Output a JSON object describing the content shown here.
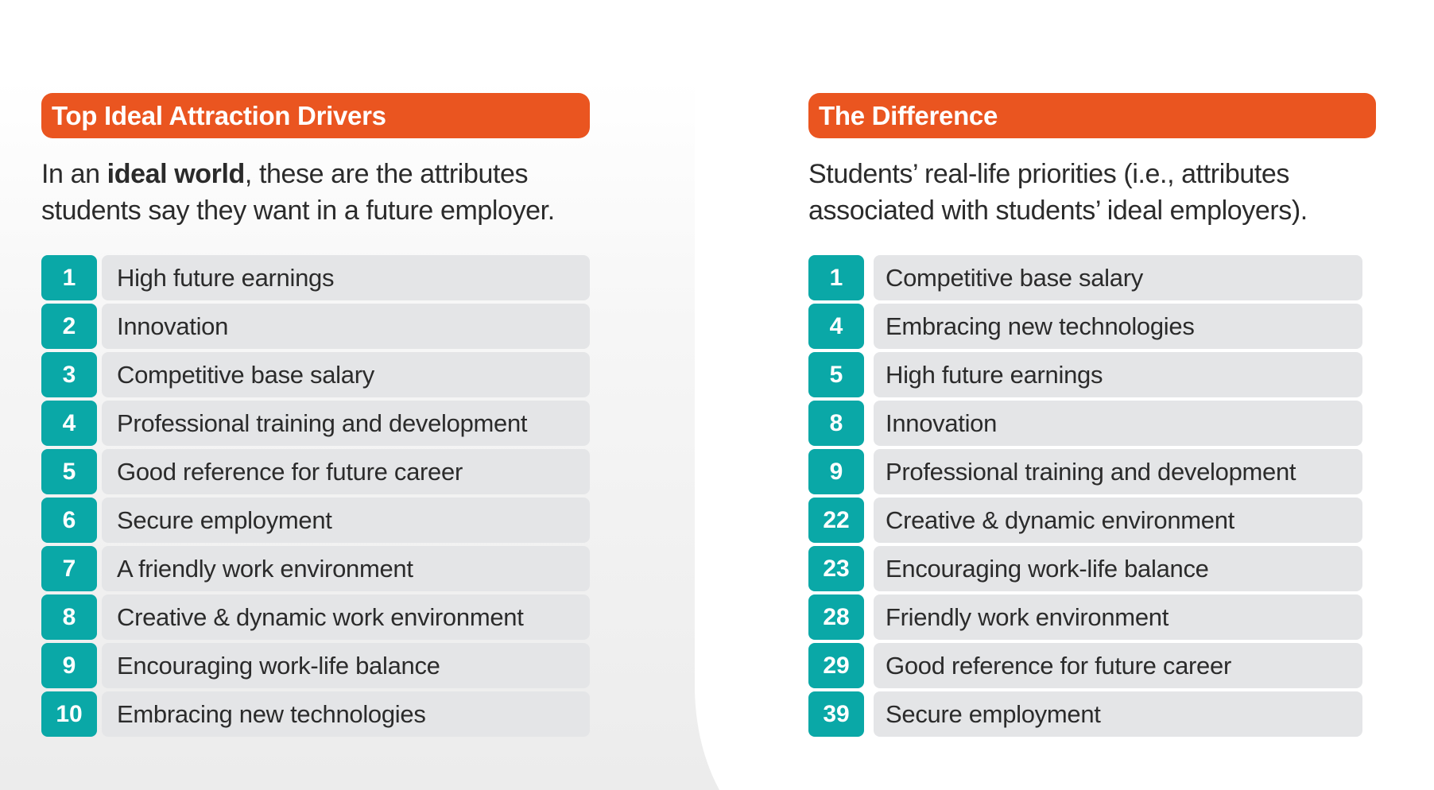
{
  "colors": {
    "header_bg": "#ea5520",
    "badge_bg": "#0aa8a7",
    "row_bg": "#e4e5e7",
    "text": "#2b2b2b"
  },
  "left_panel": {
    "title": "Top Ideal Attraction Drivers",
    "desc_prefix": "In an ",
    "desc_bold": "ideal world",
    "desc_suffix": ", these are the attributes students say they want in a future employer.",
    "items": [
      {
        "rank": "1",
        "label": "High future earnings"
      },
      {
        "rank": "2",
        "label": "Innovation"
      },
      {
        "rank": "3",
        "label": "Competitive base salary"
      },
      {
        "rank": "4",
        "label": "Professional training and development"
      },
      {
        "rank": "5",
        "label": "Good reference for future career"
      },
      {
        "rank": "6",
        "label": "Secure employment"
      },
      {
        "rank": "7",
        "label": "A friendly work environment"
      },
      {
        "rank": "8",
        "label": "Creative & dynamic work environment"
      },
      {
        "rank": "9",
        "label": "Encouraging work-life balance"
      },
      {
        "rank": "10",
        "label": "Embracing new technologies"
      }
    ]
  },
  "right_panel": {
    "title": "The Difference",
    "description": "Students’ real-life priorities (i.e., attributes associated with students’ ideal employers).",
    "items": [
      {
        "rank": "1",
        "label": "Competitive base salary"
      },
      {
        "rank": "4",
        "label": "Embracing new technologies"
      },
      {
        "rank": "5",
        "label": "High future earnings"
      },
      {
        "rank": "8",
        "label": "Innovation"
      },
      {
        "rank": "9",
        "label": "Professional training and development"
      },
      {
        "rank": "22",
        "label": "Creative & dynamic environment"
      },
      {
        "rank": "23",
        "label": "Encouraging work-life balance"
      },
      {
        "rank": "28",
        "label": "Friendly work environment"
      },
      {
        "rank": "29",
        "label": "Good reference for future career"
      },
      {
        "rank": "39",
        "label": "Secure employment"
      }
    ]
  }
}
